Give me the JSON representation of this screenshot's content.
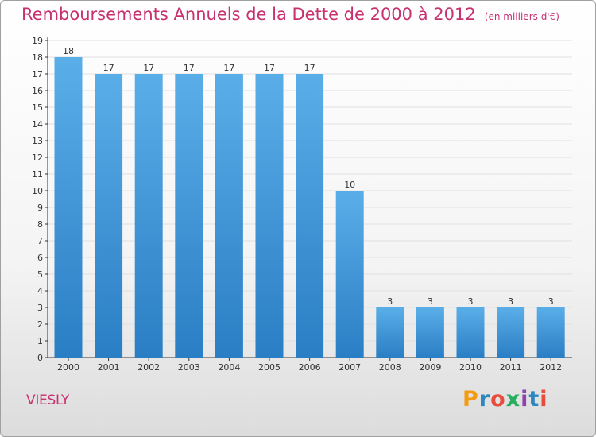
{
  "header": {
    "title": "Remboursements Annuels de la Dette de 2000 à 2012",
    "unit": "(en milliers d'€)"
  },
  "footer": {
    "commune": "VIESLY",
    "logo": "Proxiti",
    "logo_colors": [
      "#f39c12",
      "#2e86c1",
      "#e74c3c",
      "#27ae60",
      "#8e44ad",
      "#2e86c1",
      "#e74c3c"
    ]
  },
  "colors": {
    "bar_light": "#5aaee8",
    "bar_dark": "#2a7ec4",
    "title": "#c8306f",
    "grid": "#e0e0e0"
  },
  "chart_data": {
    "type": "bar",
    "title": "Remboursements Annuels de la Dette de 2000 à 2012",
    "xlabel": "",
    "ylabel": "",
    "categories": [
      "2000",
      "2001",
      "2002",
      "2003",
      "2004",
      "2005",
      "2006",
      "2007",
      "2008",
      "2009",
      "2010",
      "2011",
      "2012"
    ],
    "values": [
      18,
      17,
      17,
      17,
      17,
      17,
      17,
      10,
      3,
      3,
      3,
      3,
      3
    ],
    "data_labels": [
      "18",
      "17",
      "17",
      "17",
      "17",
      "17",
      "17",
      "10",
      "3",
      "3",
      "3",
      "3",
      "3"
    ],
    "ylim": [
      0,
      19
    ],
    "yticks": [
      "0",
      "1",
      "2",
      "3",
      "4",
      "5",
      "6",
      "7",
      "8",
      "9",
      "10",
      "11",
      "12",
      "13",
      "14",
      "15",
      "16",
      "17",
      "18",
      "19"
    ],
    "grid": true,
    "legend": "none"
  }
}
